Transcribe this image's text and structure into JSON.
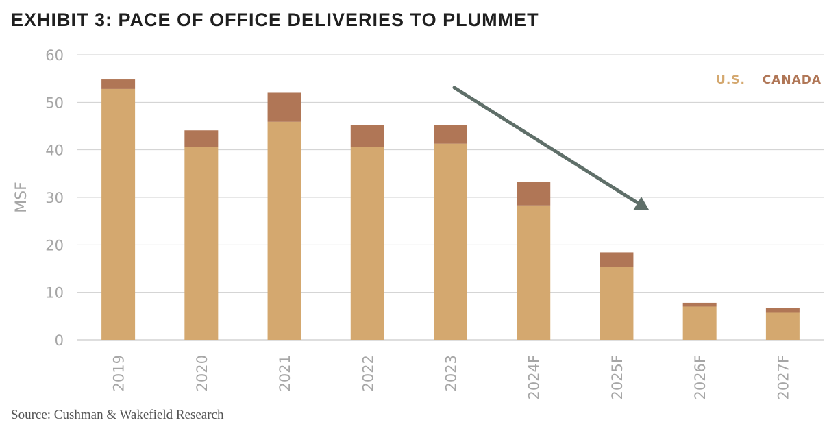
{
  "title": "EXHIBIT 3: PACE OF OFFICE DELIVERIES TO PLUMMET",
  "source": "Source: Cushman & Wakefield Research",
  "colors": {
    "us": "#d4a86f",
    "canada": "#b07656",
    "arrow": "#5f6f69",
    "grid": "#cfcfcf"
  },
  "chart_data": {
    "type": "bar",
    "stacked": true,
    "categories": [
      "2019",
      "2020",
      "2021",
      "2022",
      "2023",
      "2024F",
      "2025F",
      "2026F",
      "2027F"
    ],
    "series": [
      {
        "name": "U.S.",
        "values": [
          52.8,
          40.6,
          45.9,
          40.6,
          41.3,
          28.3,
          15.4,
          7.0,
          5.7
        ]
      },
      {
        "name": "CANADA",
        "values": [
          2.0,
          3.5,
          6.1,
          4.6,
          3.9,
          4.9,
          3.0,
          0.8,
          1.0
        ]
      }
    ],
    "ylabel": "MSF",
    "xlabel": "",
    "ylim": [
      0,
      60
    ],
    "yticks": [
      0,
      10,
      20,
      30,
      40,
      50,
      60
    ],
    "grid": true,
    "legend_position": "top-right",
    "annotation": "downward trend arrow from 2023 toward 2026F"
  }
}
